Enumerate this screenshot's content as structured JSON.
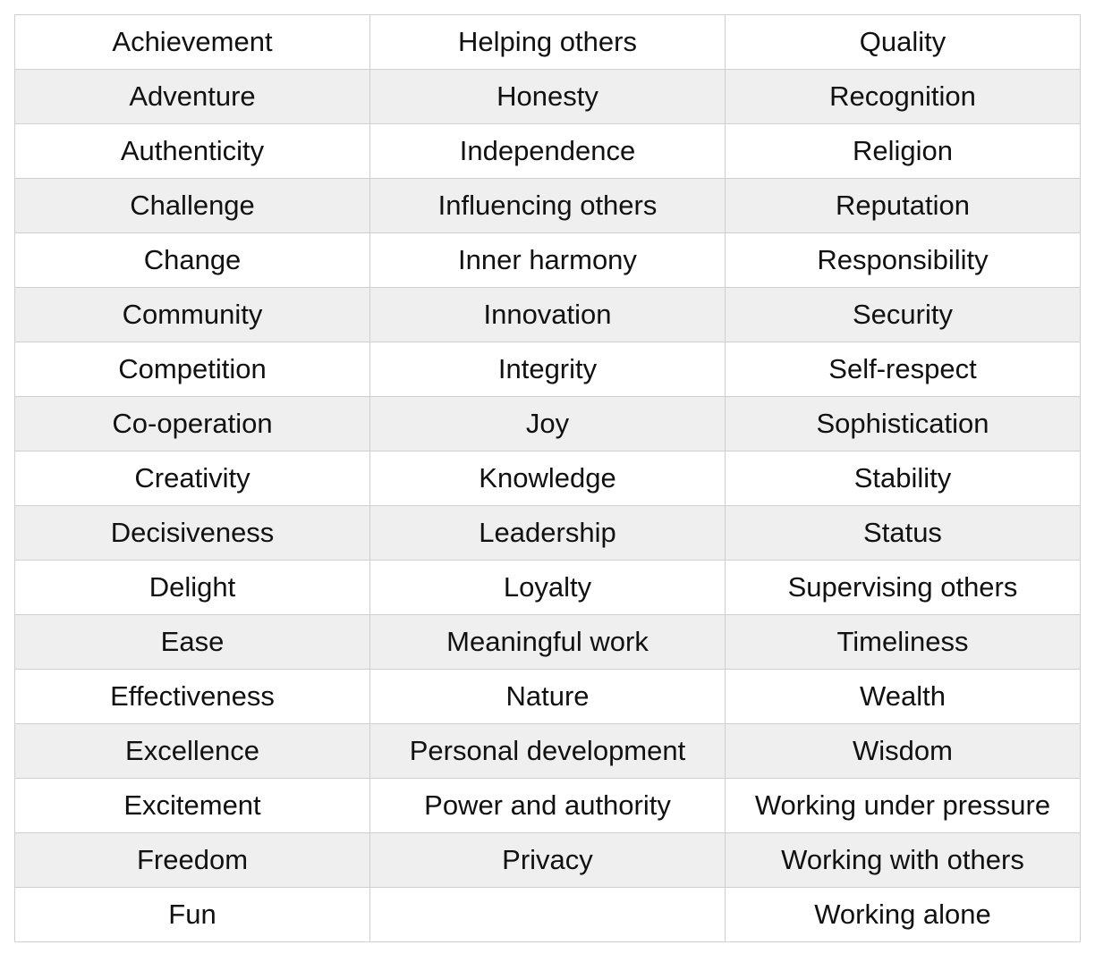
{
  "values": {
    "rows": [
      [
        "Achievement",
        "Helping others",
        "Quality"
      ],
      [
        "Adventure",
        "Honesty",
        "Recognition"
      ],
      [
        "Authenticity",
        "Independence",
        "Religion"
      ],
      [
        "Challenge",
        "Influencing others",
        "Reputation"
      ],
      [
        "Change",
        "Inner harmony",
        "Responsibility"
      ],
      [
        "Community",
        "Innovation",
        "Security"
      ],
      [
        "Competition",
        "Integrity",
        "Self-respect"
      ],
      [
        "Co-operation",
        "Joy",
        "Sophistication"
      ],
      [
        "Creativity",
        "Knowledge",
        "Stability"
      ],
      [
        "Decisiveness",
        "Leadership",
        "Status"
      ],
      [
        "Delight",
        "Loyalty",
        "Supervising others"
      ],
      [
        "Ease",
        "Meaningful work",
        "Timeliness"
      ],
      [
        "Effectiveness",
        "Nature",
        "Wealth"
      ],
      [
        "Excellence",
        "Personal development",
        "Wisdom"
      ],
      [
        "Excitement",
        "Power and authority",
        "Working under pressure"
      ],
      [
        "Freedom",
        "Privacy",
        "Working with others"
      ],
      [
        "Fun",
        "",
        "Working alone"
      ]
    ]
  },
  "colors": {
    "border": "#cfcfcf",
    "row_alt": "#efefef",
    "row_base": "#ffffff",
    "text": "#111111"
  }
}
